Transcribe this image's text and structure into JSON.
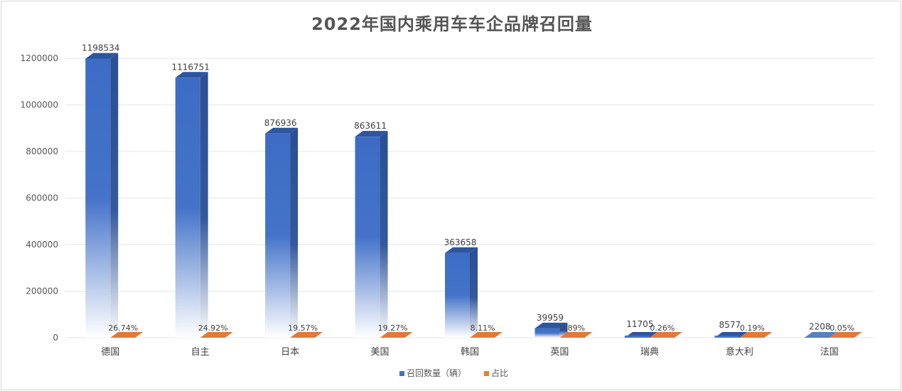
{
  "chart_data": {
    "type": "bar",
    "title": "2022年国内乘用车车企品牌召回量",
    "categories": [
      "德国",
      "自主",
      "日本",
      "美国",
      "韩国",
      "英国",
      "瑞典",
      "意大利",
      "法国"
    ],
    "series": [
      {
        "name": "召回数量（辆）",
        "values": [
          1198534,
          1116751,
          876936,
          863611,
          363658,
          39959,
          11705,
          8577,
          2208
        ],
        "labels": [
          "1198534",
          "1116751",
          "876936",
          "863611",
          "363658",
          "39959",
          "11705",
          "8577",
          "2208"
        ],
        "color": "#4472c4"
      },
      {
        "name": "占比",
        "values": [
          26.74,
          24.92,
          19.57,
          19.27,
          8.11,
          0.89,
          0.26,
          0.19,
          0.05
        ],
        "labels": [
          "26.74%",
          "24.92%",
          "19.57%",
          "19.27%",
          "8.11%",
          "0.89%",
          "0.26%",
          "0.19%",
          "0.05%"
        ],
        "color": "#ed7d31"
      }
    ],
    "yticks": [
      "0",
      "200000",
      "400000",
      "600000",
      "800000",
      "1000000",
      "1200000"
    ],
    "ylim": [
      0,
      1200000
    ],
    "grid": true,
    "legend": "bottom"
  }
}
